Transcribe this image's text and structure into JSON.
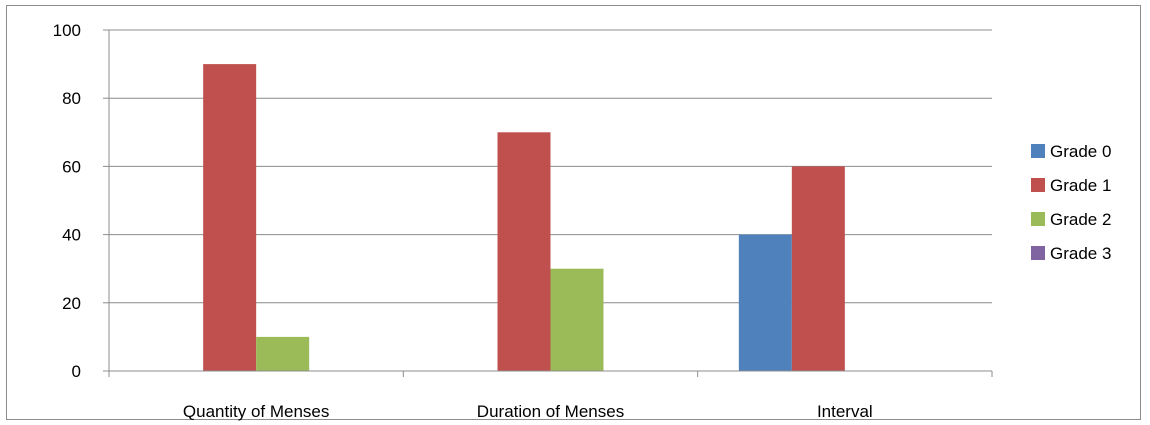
{
  "chart_data": {
    "type": "bar",
    "categories": [
      "Quantity of Menses",
      "Duration of Menses",
      "Interval"
    ],
    "series": [
      {
        "name": "Grade 0",
        "color": "#4f81bd",
        "values": [
          0,
          0,
          40
        ]
      },
      {
        "name": "Grade 1",
        "color": "#c0504d",
        "values": [
          90,
          70,
          60
        ]
      },
      {
        "name": "Grade 2",
        "color": "#9bbb59",
        "values": [
          10,
          30,
          0
        ]
      },
      {
        "name": "Grade 3",
        "color": "#8064a2",
        "values": [
          0,
          0,
          0
        ]
      }
    ],
    "yticks": [
      "0",
      "20",
      "40",
      "60",
      "80",
      "100"
    ],
    "ylim": [
      0,
      100
    ],
    "grid": true,
    "legend_position": "right"
  }
}
